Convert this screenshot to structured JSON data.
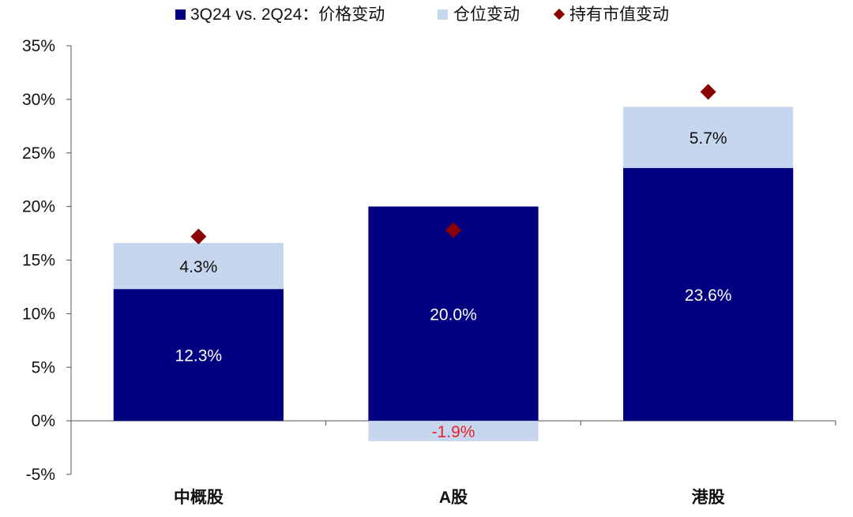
{
  "chart_data": {
    "type": "bar",
    "stacked": true,
    "categories": [
      "中概股",
      "A股",
      "港股"
    ],
    "series": [
      {
        "name": "3Q24 vs. 2Q24：价格变动",
        "kind": "bar",
        "color": "#000080",
        "values": [
          12.3,
          20.0,
          23.6
        ],
        "labels": [
          "12.3%",
          "20.0%",
          "23.6%"
        ]
      },
      {
        "name": "仓位变动",
        "kind": "bar",
        "color": "#C5D6EE",
        "values": [
          4.3,
          -1.9,
          5.7
        ],
        "labels": [
          "4.3%",
          "-1.9%",
          "5.7%"
        ]
      },
      {
        "name": "持有市值变动",
        "kind": "marker",
        "marker": "diamond",
        "color": "#8B0000",
        "values": [
          17.2,
          17.8,
          30.7
        ]
      }
    ],
    "yticks": [
      "35%",
      "30%",
      "25%",
      "20%",
      "15%",
      "10%",
      "5%",
      "0%",
      "-5%"
    ],
    "ylim": [
      -5,
      35
    ],
    "legend_position": "top",
    "grid": false,
    "negative_label_color": "#E8212A"
  }
}
